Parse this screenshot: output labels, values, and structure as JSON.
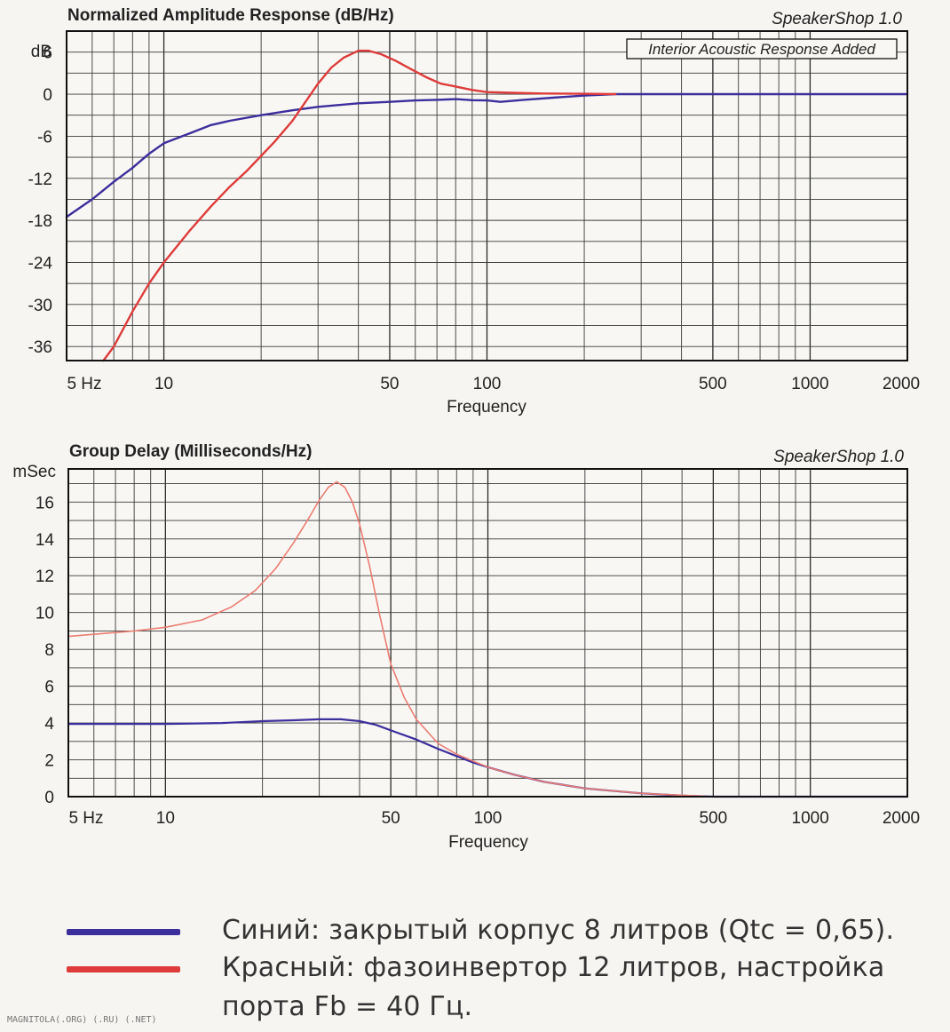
{
  "colors": {
    "blue": "#3c2e9c",
    "red": "#dd3c3a",
    "red_light": "#ec7d72"
  },
  "chart_data": [
    {
      "type": "line",
      "title": "Normalized Amplitude Response (dB/Hz)",
      "brand": "SpeakerShop 1.0",
      "annotation": "Interior Acoustic Response Added",
      "xlabel": "Frequency",
      "ylabel": "dB",
      "x_scale": "log",
      "xlim": [
        5,
        2000
      ],
      "ylim": [
        -38,
        9
      ],
      "x_ticks": [
        {
          "value": 5,
          "label": "5  Hz"
        },
        {
          "value": 10,
          "label": "10"
        },
        {
          "value": 50,
          "label": "50"
        },
        {
          "value": 100,
          "label": "100"
        },
        {
          "value": 500,
          "label": "500"
        },
        {
          "value": 1000,
          "label": "1000"
        },
        {
          "value": 2000,
          "label": "2000"
        }
      ],
      "y_ticks": [
        {
          "value": 6,
          "label": "6"
        },
        {
          "value": 0,
          "label": "0"
        },
        {
          "value": -6,
          "label": "-6"
        },
        {
          "value": -12,
          "label": "-12"
        },
        {
          "value": -18,
          "label": "-18"
        },
        {
          "value": -24,
          "label": "-24"
        },
        {
          "value": -30,
          "label": "-30"
        },
        {
          "value": -36,
          "label": "-36"
        }
      ],
      "grid": true,
      "series": [
        {
          "color_key": "blue",
          "points": [
            [
              5,
              -17.5
            ],
            [
              6,
              -15
            ],
            [
              7,
              -12.5
            ],
            [
              8,
              -10.5
            ],
            [
              9,
              -8.5
            ],
            [
              10,
              -7
            ],
            [
              12,
              -5.6
            ],
            [
              14,
              -4.4
            ],
            [
              16,
              -3.8
            ],
            [
              20,
              -3
            ],
            [
              25,
              -2.3
            ],
            [
              30,
              -1.8
            ],
            [
              40,
              -1.3
            ],
            [
              50,
              -1.1
            ],
            [
              60,
              -0.9
            ],
            [
              70,
              -0.8
            ],
            [
              80,
              -0.7
            ],
            [
              90,
              -0.85
            ],
            [
              100,
              -0.9
            ],
            [
              110,
              -1.1
            ],
            [
              130,
              -0.8
            ],
            [
              160,
              -0.5
            ],
            [
              200,
              -0.2
            ],
            [
              250,
              0
            ],
            [
              300,
              0
            ],
            [
              2000,
              0
            ]
          ]
        },
        {
          "color_key": "red",
          "points": [
            [
              6.5,
              -39
            ],
            [
              7,
              -36
            ],
            [
              8,
              -31
            ],
            [
              9,
              -27
            ],
            [
              10,
              -24
            ],
            [
              12,
              -19.5
            ],
            [
              14,
              -16
            ],
            [
              16,
              -13.2
            ],
            [
              18,
              -11
            ],
            [
              20,
              -8.8
            ],
            [
              22,
              -6.8
            ],
            [
              25,
              -3.8
            ],
            [
              28,
              -0.5
            ],
            [
              30,
              1.5
            ],
            [
              33,
              3.8
            ],
            [
              36,
              5.2
            ],
            [
              40,
              6.2
            ],
            [
              43,
              6.2
            ],
            [
              47,
              5.7
            ],
            [
              52,
              4.8
            ],
            [
              58,
              3.6
            ],
            [
              65,
              2.4
            ],
            [
              72,
              1.5
            ],
            [
              80,
              1.1
            ],
            [
              90,
              0.6
            ],
            [
              100,
              0.3
            ],
            [
              120,
              0.2
            ],
            [
              150,
              0.1
            ],
            [
              200,
              0.05
            ],
            [
              250,
              0
            ]
          ]
        }
      ]
    },
    {
      "type": "line",
      "title": "Group Delay (Milliseconds/Hz)",
      "brand": "SpeakerShop 1.0",
      "xlabel": "Frequency",
      "ylabel": "mSec",
      "x_scale": "log",
      "xlim": [
        5,
        2000
      ],
      "ylim": [
        0,
        17.8
      ],
      "x_ticks": [
        {
          "value": 5,
          "label": "5  Hz"
        },
        {
          "value": 10,
          "label": "10"
        },
        {
          "value": 50,
          "label": "50"
        },
        {
          "value": 100,
          "label": "100"
        },
        {
          "value": 500,
          "label": "500"
        },
        {
          "value": 1000,
          "label": "1000"
        },
        {
          "value": 2000,
          "label": "2000"
        }
      ],
      "y_ticks": [
        {
          "value": 16,
          "label": "16"
        },
        {
          "value": 14,
          "label": "14"
        },
        {
          "value": 12,
          "label": "12"
        },
        {
          "value": 10,
          "label": "10"
        },
        {
          "value": 8,
          "label": "8"
        },
        {
          "value": 6,
          "label": "6"
        },
        {
          "value": 4,
          "label": "4"
        },
        {
          "value": 2,
          "label": "2"
        },
        {
          "value": 0,
          "label": "0"
        }
      ],
      "grid": true,
      "series": [
        {
          "color_key": "blue",
          "points": [
            [
              5,
              3.95
            ],
            [
              10,
              3.95
            ],
            [
              15,
              4
            ],
            [
              20,
              4.1
            ],
            [
              25,
              4.15
            ],
            [
              30,
              4.2
            ],
            [
              35,
              4.2
            ],
            [
              40,
              4.1
            ],
            [
              45,
              3.9
            ],
            [
              50,
              3.6
            ],
            [
              60,
              3.1
            ],
            [
              70,
              2.6
            ],
            [
              80,
              2.2
            ],
            [
              90,
              1.85
            ],
            [
              100,
              1.6
            ],
            [
              120,
              1.2
            ],
            [
              150,
              0.8
            ],
            [
              200,
              0.45
            ],
            [
              250,
              0.3
            ],
            [
              300,
              0.18
            ],
            [
              400,
              0.06
            ],
            [
              500,
              0
            ],
            [
              2000,
              0
            ]
          ]
        },
        {
          "color_key": "red_light",
          "points": [
            [
              5,
              8.7
            ],
            [
              8,
              9
            ],
            [
              10,
              9.2
            ],
            [
              13,
              9.6
            ],
            [
              16,
              10.3
            ],
            [
              19,
              11.2
            ],
            [
              22,
              12.4
            ],
            [
              25,
              13.8
            ],
            [
              28,
              15.2
            ],
            [
              30,
              16.1
            ],
            [
              32,
              16.8
            ],
            [
              34,
              17.1
            ],
            [
              36,
              16.8
            ],
            [
              38,
              16
            ],
            [
              40,
              14.8
            ],
            [
              43,
              12.5
            ],
            [
              46,
              10
            ],
            [
              50,
              7.2
            ],
            [
              55,
              5.4
            ],
            [
              60,
              4.2
            ],
            [
              70,
              2.9
            ],
            [
              80,
              2.3
            ],
            [
              100,
              1.6
            ],
            [
              120,
              1.2
            ],
            [
              150,
              0.8
            ],
            [
              200,
              0.45
            ],
            [
              300,
              0.18
            ],
            [
              500,
              0
            ]
          ]
        }
      ]
    }
  ],
  "legend": {
    "blue_label": "Синий: закрытый корпус 8 литров (Qtc = 0,65).",
    "red_label_line1": "Красный: фазоинвертор 12 литров, настройка",
    "red_label_line2": "порта Fb = 40 Гц."
  },
  "footer": "MAGNITOLA(.ORG) (.RU) (.NET)"
}
